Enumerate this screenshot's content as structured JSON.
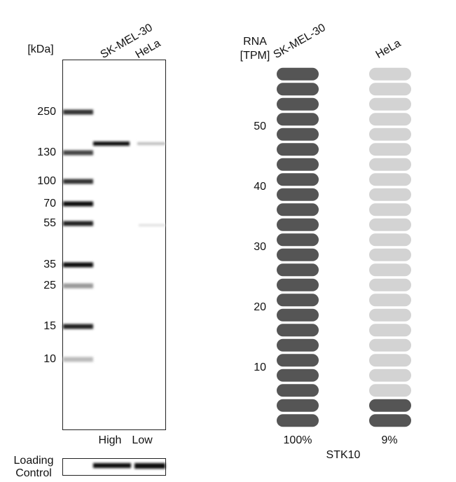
{
  "western_blot": {
    "unit_label": "[kDa]",
    "lanes": [
      "SK-MEL-30",
      "HeLa"
    ],
    "markers": [
      250,
      130,
      100,
      70,
      55,
      35,
      25,
      15,
      10
    ],
    "lane_levels": [
      "High",
      "Low"
    ],
    "loading_control_label": [
      "Loading",
      "Control"
    ]
  },
  "rna": {
    "axis_title": [
      "RNA",
      "[TPM]"
    ],
    "ylim": [
      0,
      60
    ],
    "yticks": [
      10,
      20,
      30,
      40,
      50
    ],
    "columns": [
      "SK-MEL-30",
      "HeLa"
    ],
    "values": [
      100,
      9
    ],
    "value_labels": [
      "100%",
      "9%"
    ],
    "gene": "STK10"
  }
}
